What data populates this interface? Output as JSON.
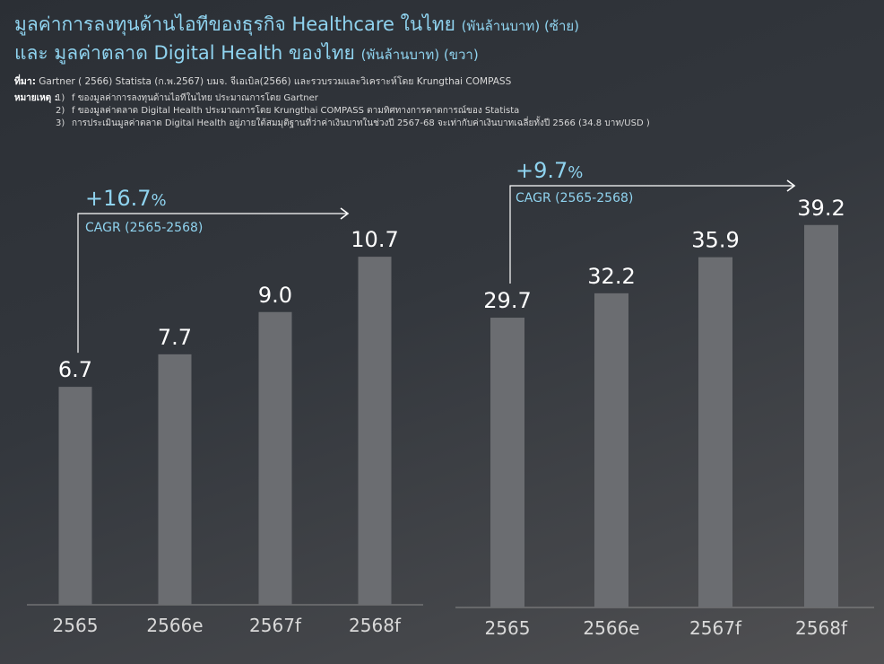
{
  "header": {
    "title_line1": "มูลค่าการลงทุนด้านไอทีของธุรกิจ Healthcare ในไทย",
    "title_line1_unit": "(พันล้านบาท) (ซ้าย)",
    "title_line2": "และ มูลค่าตลาด Digital Health ของไทย",
    "title_line2_unit": "(พันล้านบาท) (ขวา)",
    "source_label": "ที่มา:",
    "source_text": "Gartner ( 2566)  Statista (ก.พ.2567) บมจ. จีเอเบิล(2566) และรวบรวมและวิเคราะห์โดย Krungthai COMPASS",
    "notes_label": "หมายเหตุ :",
    "notes": [
      {
        "num": "1)",
        "text": "f ของมูลค่าการลงทุนด้านไอทีในไทย ประมาณการโดย Gartner"
      },
      {
        "num": "2)",
        "text": "f ของมูลค่าตลาด Digital Health ประมาณการโดย Krungthai COMPASS ตามทิศทางการคาดการณ์ของ Statista"
      },
      {
        "num": "3)",
        "text": "การประเมินมูลค่าตลาด Digital Health อยู่ภายใต้สมมุติฐานที่ว่าค่าเงินบาทในช่วงปี 2567-68 จะเท่ากับค่าเงินบาทเฉลี่ยทั้งปี 2566 (34.8 บาท/USD )"
      }
    ]
  },
  "colors": {
    "bar": "#6b6d71",
    "accent": "#8fd3ef",
    "axis": "#8a8a8a"
  },
  "chart_data": [
    {
      "type": "bar",
      "title": "",
      "categories": [
        "2565",
        "2566e",
        "2567f",
        "2568f"
      ],
      "values": [
        6.7,
        7.7,
        9.0,
        10.7
      ],
      "value_labels": [
        "6.7",
        "7.7",
        "9.0",
        "10.7"
      ],
      "ylim": [
        0,
        12
      ],
      "cagr": {
        "value": "+16.7",
        "unit": "%",
        "label": "CAGR (2565-2568)"
      }
    },
    {
      "type": "bar",
      "title": "",
      "categories": [
        "2565",
        "2566e",
        "2567f",
        "2568f"
      ],
      "values": [
        29.7,
        32.2,
        35.9,
        39.2
      ],
      "value_labels": [
        "29.7",
        "32.2",
        "35.9",
        "39.2"
      ],
      "ylim": [
        0,
        43.5
      ],
      "cagr": {
        "value": "+9.7",
        "unit": "%",
        "label": "CAGR (2565-2568)"
      }
    }
  ]
}
